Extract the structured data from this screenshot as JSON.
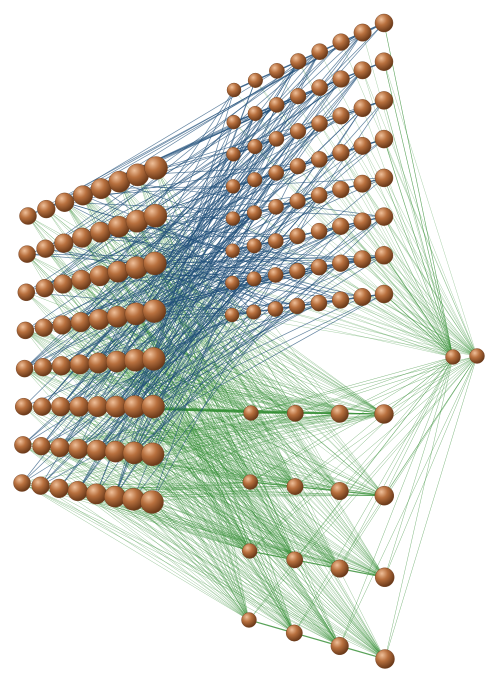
{
  "diagram": {
    "kind": "neural-network-3d",
    "background": "#ffffff",
    "colors": {
      "node": "#b8703e",
      "node_highlight": "#e9b08a",
      "node_shadow": "#6b3a1a",
      "edge_blue": "#1f4e79",
      "edge_green": "#2e8b2e"
    },
    "layers": [
      {
        "id": "input",
        "rows": 8,
        "cols": 8
      },
      {
        "id": "hidden-upper",
        "rows": 8,
        "cols": 8
      },
      {
        "id": "hidden-lower",
        "rows": 4,
        "cols": 4
      },
      {
        "id": "output",
        "nodes": 2
      }
    ]
  }
}
